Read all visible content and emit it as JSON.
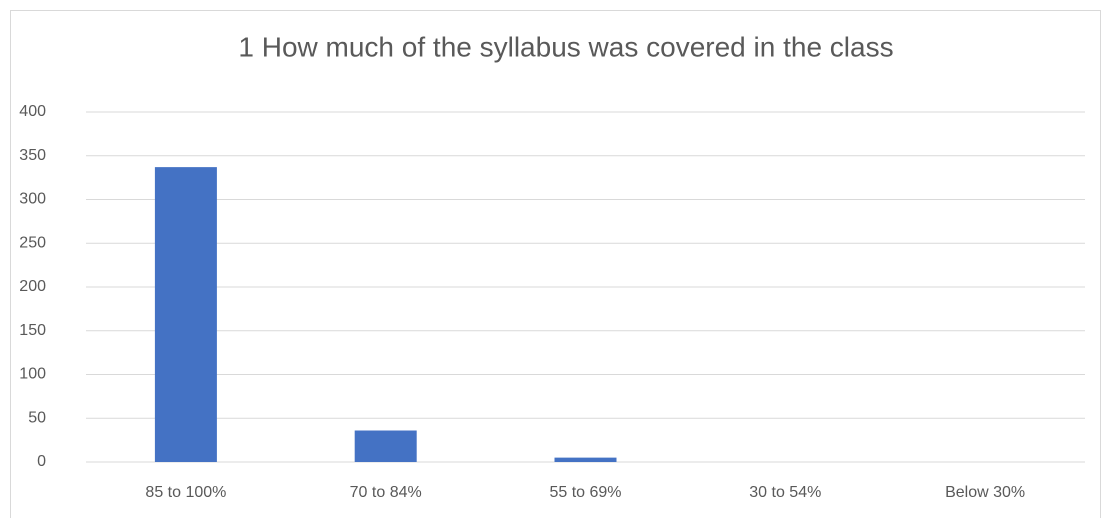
{
  "chart_data": {
    "type": "bar",
    "title": "1 How much of the syllabus was covered in the class",
    "categories": [
      "85 to 100%",
      "70 to 84%",
      "55 to 69%",
      "30 to 54%",
      "Below 30%"
    ],
    "values": [
      337,
      36,
      5,
      0,
      0
    ],
    "color": "#4472c4",
    "ylim": [
      0,
      400
    ],
    "yticks": [
      0,
      50,
      100,
      150,
      200,
      250,
      300,
      350,
      400
    ],
    "grid": true
  }
}
